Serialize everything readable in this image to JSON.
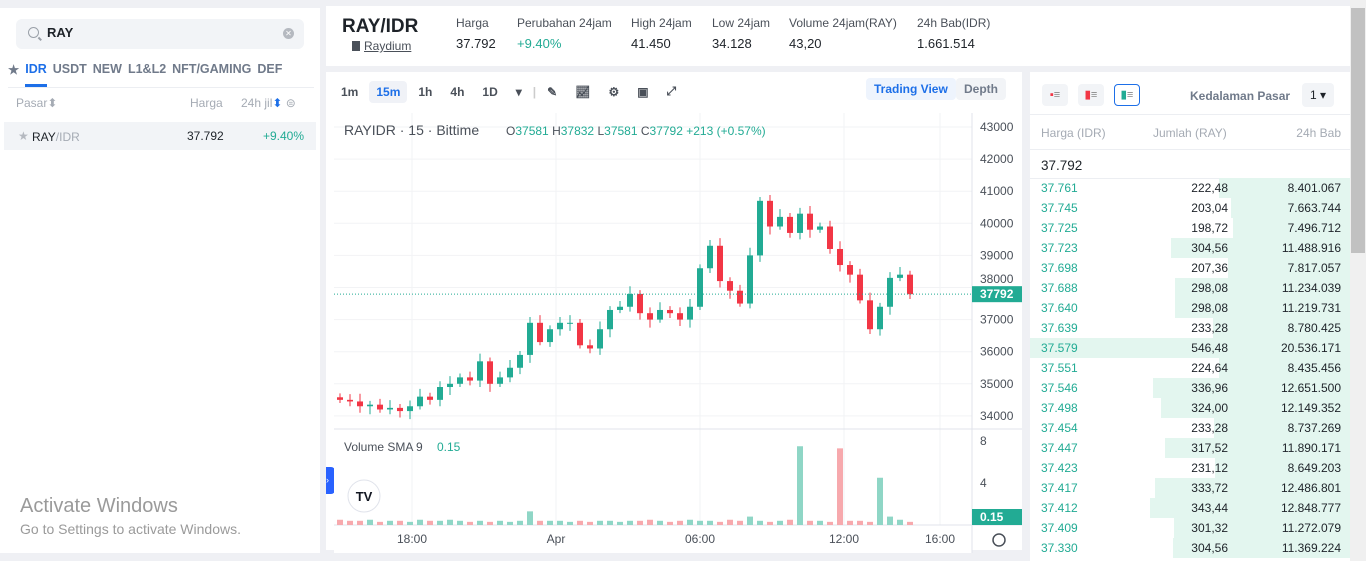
{
  "search": {
    "value": "RAY"
  },
  "market_tabs": [
    "IDR",
    "USDT",
    "NEW",
    "L1&L2",
    "NFT/GAMING",
    "DEF"
  ],
  "market_list": {
    "headers": {
      "pair": "Pasar",
      "price": "Harga",
      "change": "24h jil"
    },
    "rows": [
      {
        "base": "RAY",
        "quote": "/IDR",
        "price": "37.792",
        "change": "+9.40%"
      }
    ]
  },
  "header": {
    "pair": "RAY/IDR",
    "name": "Raydium",
    "stats": [
      {
        "label": "Harga",
        "value": "37.792"
      },
      {
        "label": "Perubahan 24jam",
        "value": "+9.40%"
      },
      {
        "label": "High 24jam",
        "value": "41.450"
      },
      {
        "label": "Low 24jam",
        "value": "34.128"
      },
      {
        "label": "Volume 24jam(RAY)",
        "value": "43,20"
      },
      {
        "label": "24h Bab(IDR)",
        "value": "1.661.514"
      }
    ]
  },
  "chart_toolbar": {
    "intervals": [
      "1m",
      "15m",
      "1h",
      "4h",
      "1D"
    ],
    "active": "15m",
    "trading_view": "Trading View",
    "depth": "Depth"
  },
  "chart_legend": {
    "symbol": "RAYIDR · 15 · Bittime",
    "o": "37581",
    "h": "37832",
    "l": "37581",
    "c": "37792",
    "change": "+213 (+0.57%)",
    "volume_label": "Volume SMA 9",
    "volume_value": "0.15"
  },
  "colors": {
    "up": "#22ab94",
    "down": "#f23645",
    "vol_up": "#8fd6c6",
    "vol_down": "#f7a9ad",
    "accent": "#1d6fe8"
  },
  "chart_data": {
    "type": "candlestick",
    "y_ticks": [
      "43000",
      "42000",
      "41000",
      "40000",
      "39000",
      "38000",
      "37000",
      "36000",
      "35000",
      "34000"
    ],
    "x_ticks": [
      "18:00",
      "Apr",
      "06:00",
      "12:00",
      "16:00"
    ],
    "vol_ticks": [
      "8",
      "4"
    ],
    "last_price": "37792",
    "last_volume": "0.15",
    "closes": [
      34500,
      34450,
      34300,
      34350,
      34200,
      34250,
      34150,
      34300,
      34600,
      34500,
      34900,
      35000,
      35200,
      35100,
      35700,
      35000,
      35200,
      35500,
      35900,
      36900,
      36300,
      36700,
      36900,
      36900,
      36200,
      36100,
      36700,
      37300,
      37400,
      37800,
      37200,
      37000,
      37300,
      37200,
      37000,
      37400,
      38600,
      39300,
      38200,
      37900,
      37500,
      39000,
      40700,
      39900,
      40200,
      39700,
      40300,
      39800,
      39900,
      39200,
      38700,
      38400,
      37600,
      36700,
      37400,
      38300,
      38400,
      37792
    ],
    "volumes": [
      0.5,
      0.4,
      0.4,
      0.5,
      0.3,
      0.4,
      0.4,
      0.3,
      0.5,
      0.4,
      0.4,
      0.5,
      0.4,
      0.3,
      0.4,
      0.3,
      0.4,
      0.3,
      0.4,
      1.3,
      0.4,
      0.4,
      0.4,
      0.3,
      0.4,
      0.3,
      0.4,
      0.4,
      0.3,
      0.4,
      0.4,
      0.5,
      0.4,
      0.3,
      0.4,
      0.5,
      0.4,
      0.4,
      0.3,
      0.5,
      0.4,
      0.8,
      0.4,
      0.3,
      0.4,
      0.5,
      7.5,
      0.4,
      0.4,
      0.3,
      7.3,
      0.4,
      0.4,
      0.3,
      4.5,
      0.8,
      0.5,
      0.3
    ]
  },
  "orderbook": {
    "depth_label": "Kedalaman Pasar",
    "depth_value": "1",
    "headers": {
      "price": "Harga (IDR)",
      "amount": "Jumlah (RAY)",
      "total": "24h Bab"
    },
    "last": "37.792",
    "rows": [
      [
        "37.761",
        "222,48",
        "8.401.067"
      ],
      [
        "37.745",
        "203,04",
        "7.663.744"
      ],
      [
        "37.725",
        "198,72",
        "7.496.712"
      ],
      [
        "37.723",
        "304,56",
        "11.488.916"
      ],
      [
        "37.698",
        "207,36",
        "7.817.057"
      ],
      [
        "37.688",
        "298,08",
        "11.234.039"
      ],
      [
        "37.640",
        "298,08",
        "11.219.731"
      ],
      [
        "37.639",
        "233,28",
        "8.780.425"
      ],
      [
        "37.579",
        "546,48",
        "20.536.171"
      ],
      [
        "37.551",
        "224,64",
        "8.435.456"
      ],
      [
        "37.546",
        "336,96",
        "12.651.500"
      ],
      [
        "37.498",
        "324,00",
        "12.149.352"
      ],
      [
        "37.454",
        "233,28",
        "8.737.269"
      ],
      [
        "37.447",
        "317,52",
        "11.890.171"
      ],
      [
        "37.423",
        "231,12",
        "8.649.203"
      ],
      [
        "37.417",
        "333,72",
        "12.486.801"
      ],
      [
        "37.412",
        "343,44",
        "12.848.777"
      ],
      [
        "37.409",
        "301,32",
        "11.272.079"
      ],
      [
        "37.330",
        "304,56",
        "11.369.224"
      ]
    ]
  },
  "watermark": {
    "title": "Activate Windows",
    "sub": "Go to Settings to activate Windows."
  }
}
